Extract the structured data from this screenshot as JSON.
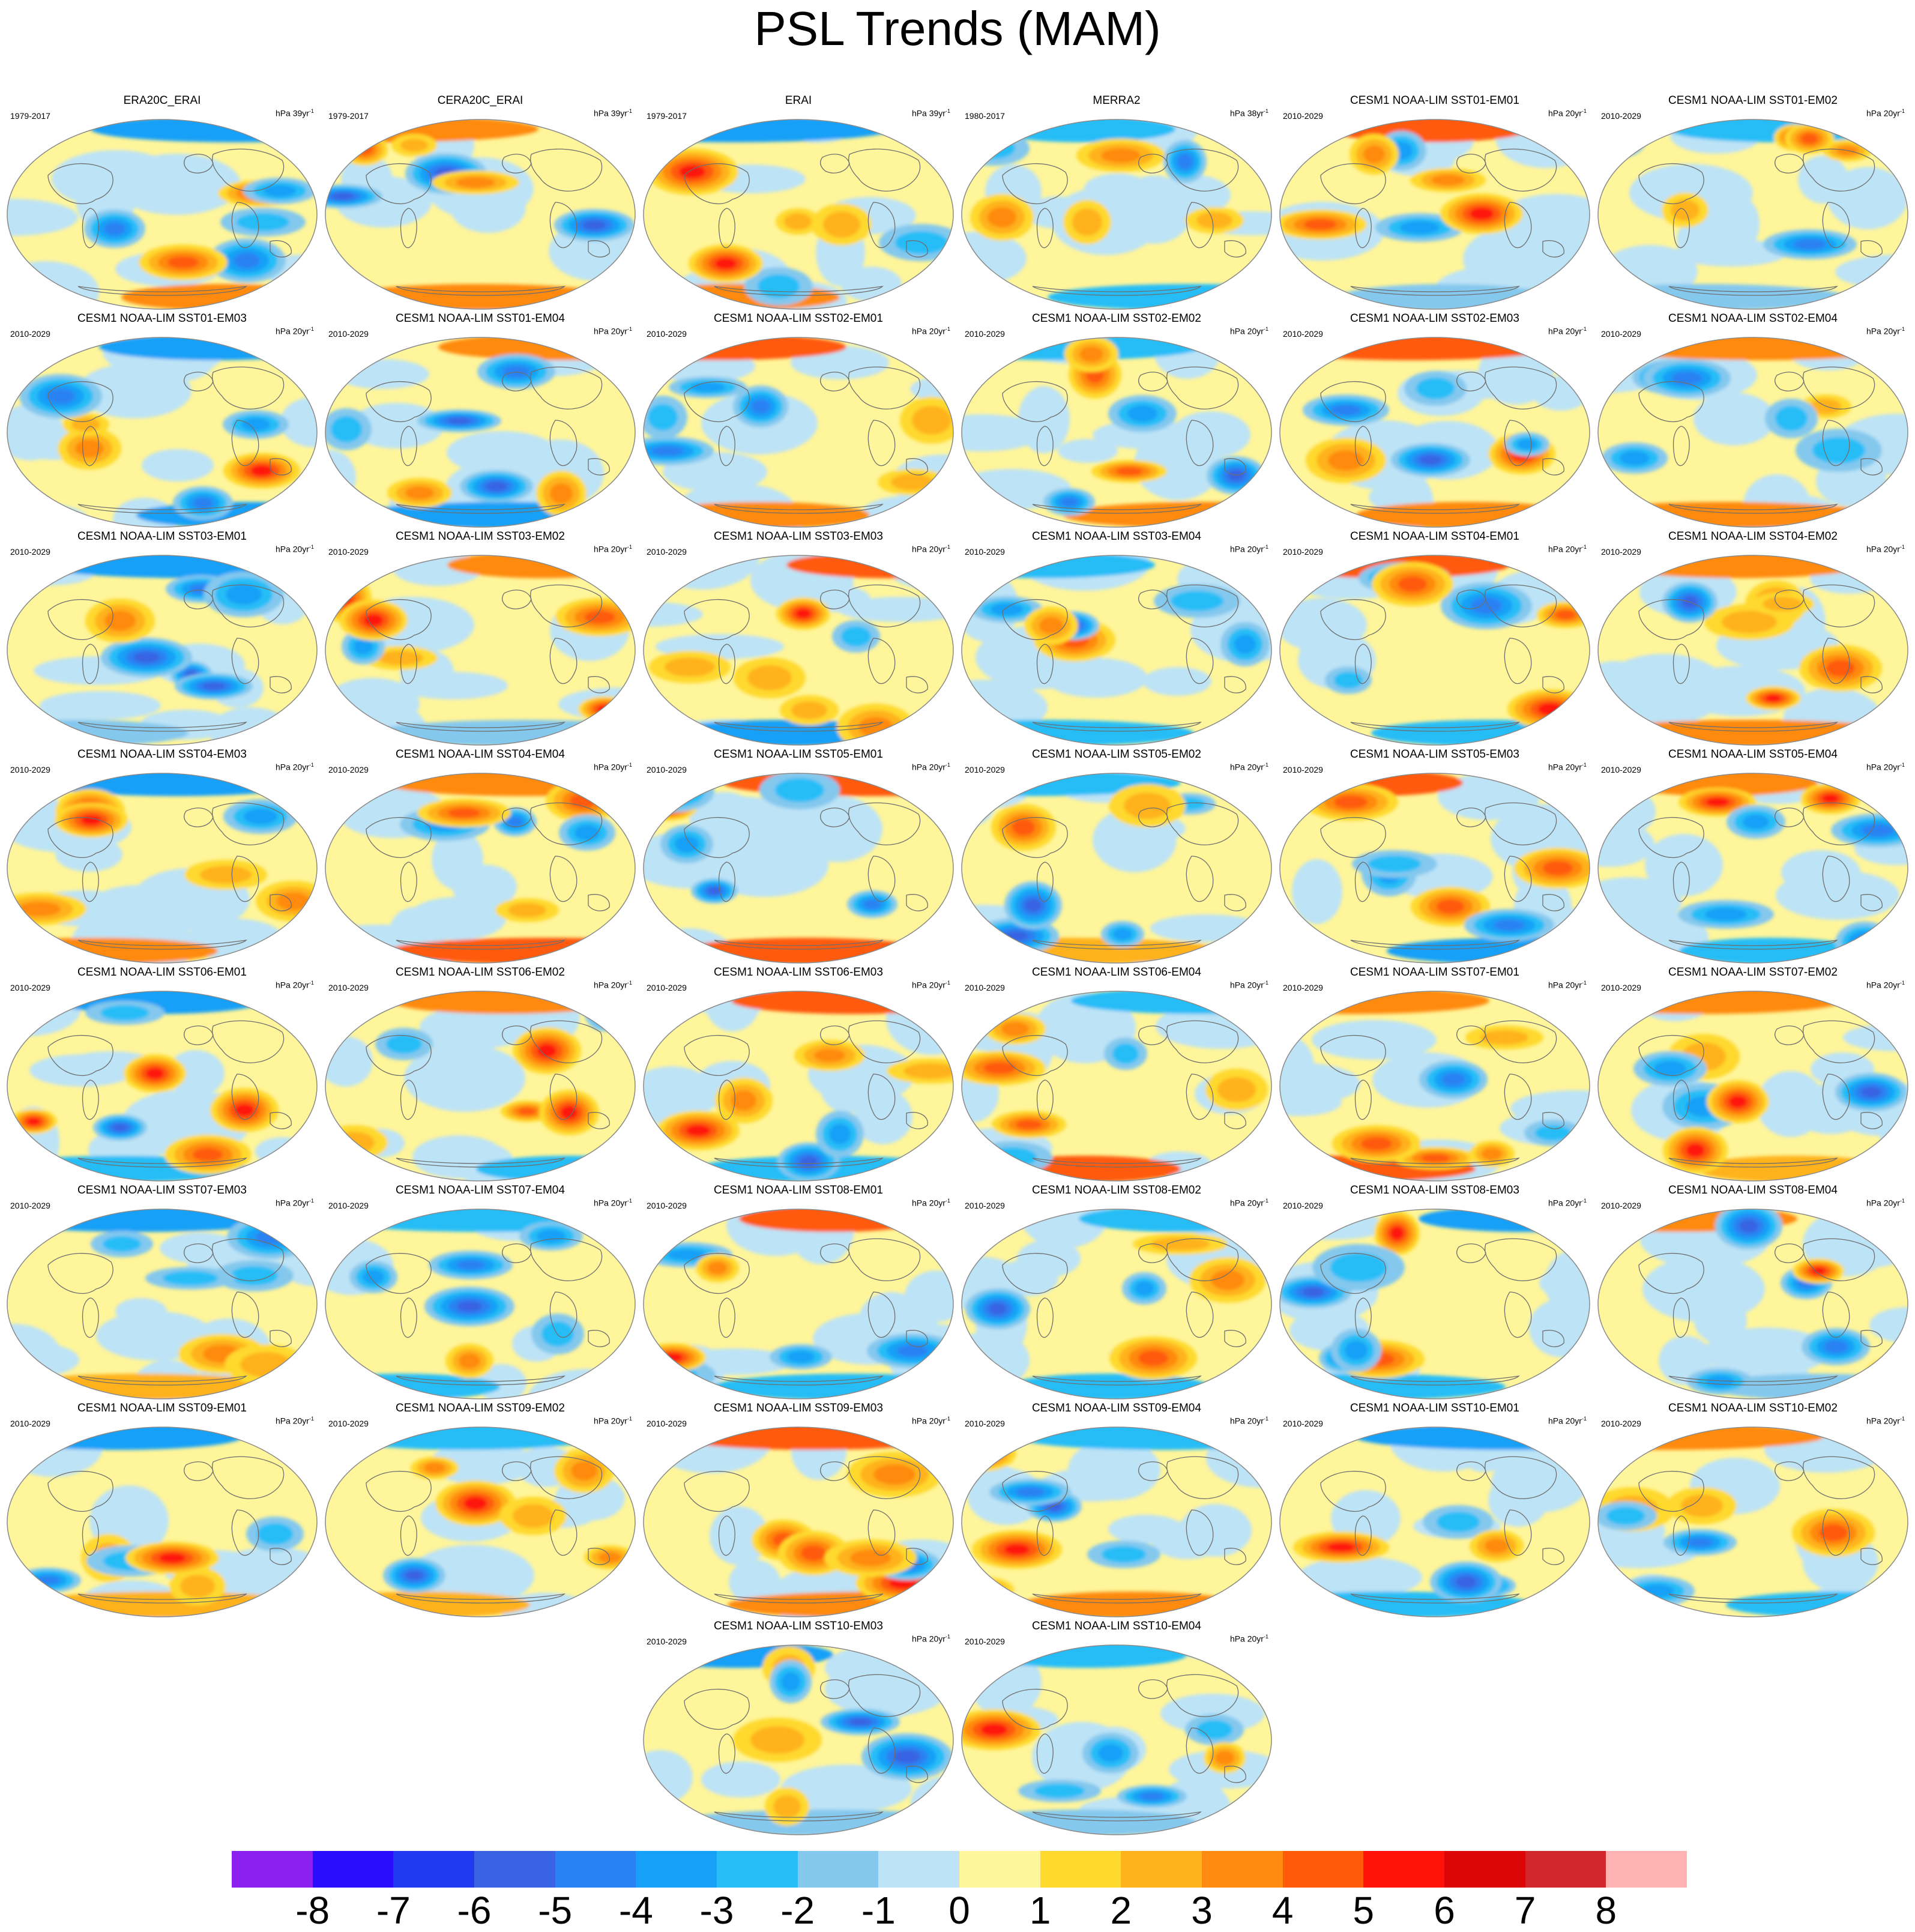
{
  "title": "PSL Trends (MAM)",
  "panels": [
    {
      "title": "ERA20C_ERAI",
      "period": "1979-2017",
      "units_prefix": "hPa 39yr",
      "units_exp": "-1"
    },
    {
      "title": "CERA20C_ERAI",
      "period": "1979-2017",
      "units_prefix": "hPa 39yr",
      "units_exp": "-1"
    },
    {
      "title": "ERAI",
      "period": "1979-2017",
      "units_prefix": "hPa 39yr",
      "units_exp": "-1"
    },
    {
      "title": "MERRA2",
      "period": "1980-2017",
      "units_prefix": "hPa 38yr",
      "units_exp": "-1"
    },
    {
      "title": "CESM1 NOAA-LIM SST01-EM01",
      "period": "2010-2029",
      "units_prefix": "hPa 20yr",
      "units_exp": "-1"
    },
    {
      "title": "CESM1 NOAA-LIM SST01-EM02",
      "period": "2010-2029",
      "units_prefix": "hPa 20yr",
      "units_exp": "-1"
    },
    {
      "title": "CESM1 NOAA-LIM SST01-EM03",
      "period": "2010-2029",
      "units_prefix": "hPa 20yr",
      "units_exp": "-1"
    },
    {
      "title": "CESM1 NOAA-LIM SST01-EM04",
      "period": "2010-2029",
      "units_prefix": "hPa 20yr",
      "units_exp": "-1"
    },
    {
      "title": "CESM1 NOAA-LIM SST02-EM01",
      "period": "2010-2029",
      "units_prefix": "hPa 20yr",
      "units_exp": "-1"
    },
    {
      "title": "CESM1 NOAA-LIM SST02-EM02",
      "period": "2010-2029",
      "units_prefix": "hPa 20yr",
      "units_exp": "-1"
    },
    {
      "title": "CESM1 NOAA-LIM SST02-EM03",
      "period": "2010-2029",
      "units_prefix": "hPa 20yr",
      "units_exp": "-1"
    },
    {
      "title": "CESM1 NOAA-LIM SST02-EM04",
      "period": "2010-2029",
      "units_prefix": "hPa 20yr",
      "units_exp": "-1"
    },
    {
      "title": "CESM1 NOAA-LIM SST03-EM01",
      "period": "2010-2029",
      "units_prefix": "hPa 20yr",
      "units_exp": "-1"
    },
    {
      "title": "CESM1 NOAA-LIM SST03-EM02",
      "period": "2010-2029",
      "units_prefix": "hPa 20yr",
      "units_exp": "-1"
    },
    {
      "title": "CESM1 NOAA-LIM SST03-EM03",
      "period": "2010-2029",
      "units_prefix": "hPa 20yr",
      "units_exp": "-1"
    },
    {
      "title": "CESM1 NOAA-LIM SST03-EM04",
      "period": "2010-2029",
      "units_prefix": "hPa 20yr",
      "units_exp": "-1"
    },
    {
      "title": "CESM1 NOAA-LIM SST04-EM01",
      "period": "2010-2029",
      "units_prefix": "hPa 20yr",
      "units_exp": "-1"
    },
    {
      "title": "CESM1 NOAA-LIM SST04-EM02",
      "period": "2010-2029",
      "units_prefix": "hPa 20yr",
      "units_exp": "-1"
    },
    {
      "title": "CESM1 NOAA-LIM SST04-EM03",
      "period": "2010-2029",
      "units_prefix": "hPa 20yr",
      "units_exp": "-1"
    },
    {
      "title": "CESM1 NOAA-LIM SST04-EM04",
      "period": "2010-2029",
      "units_prefix": "hPa 20yr",
      "units_exp": "-1"
    },
    {
      "title": "CESM1 NOAA-LIM SST05-EM01",
      "period": "2010-2029",
      "units_prefix": "hPa 20yr",
      "units_exp": "-1"
    },
    {
      "title": "CESM1 NOAA-LIM SST05-EM02",
      "period": "2010-2029",
      "units_prefix": "hPa 20yr",
      "units_exp": "-1"
    },
    {
      "title": "CESM1 NOAA-LIM SST05-EM03",
      "period": "2010-2029",
      "units_prefix": "hPa 20yr",
      "units_exp": "-1"
    },
    {
      "title": "CESM1 NOAA-LIM SST05-EM04",
      "period": "2010-2029",
      "units_prefix": "hPa 20yr",
      "units_exp": "-1"
    },
    {
      "title": "CESM1 NOAA-LIM SST06-EM01",
      "period": "2010-2029",
      "units_prefix": "hPa 20yr",
      "units_exp": "-1"
    },
    {
      "title": "CESM1 NOAA-LIM SST06-EM02",
      "period": "2010-2029",
      "units_prefix": "hPa 20yr",
      "units_exp": "-1"
    },
    {
      "title": "CESM1 NOAA-LIM SST06-EM03",
      "period": "2010-2029",
      "units_prefix": "hPa 20yr",
      "units_exp": "-1"
    },
    {
      "title": "CESM1 NOAA-LIM SST06-EM04",
      "period": "2010-2029",
      "units_prefix": "hPa 20yr",
      "units_exp": "-1"
    },
    {
      "title": "CESM1 NOAA-LIM SST07-EM01",
      "period": "2010-2029",
      "units_prefix": "hPa 20yr",
      "units_exp": "-1"
    },
    {
      "title": "CESM1 NOAA-LIM SST07-EM02",
      "period": "2010-2029",
      "units_prefix": "hPa 20yr",
      "units_exp": "-1"
    },
    {
      "title": "CESM1 NOAA-LIM SST07-EM03",
      "period": "2010-2029",
      "units_prefix": "hPa 20yr",
      "units_exp": "-1"
    },
    {
      "title": "CESM1 NOAA-LIM SST07-EM04",
      "period": "2010-2029",
      "units_prefix": "hPa 20yr",
      "units_exp": "-1"
    },
    {
      "title": "CESM1 NOAA-LIM SST08-EM01",
      "period": "2010-2029",
      "units_prefix": "hPa 20yr",
      "units_exp": "-1"
    },
    {
      "title": "CESM1 NOAA-LIM SST08-EM02",
      "period": "2010-2029",
      "units_prefix": "hPa 20yr",
      "units_exp": "-1"
    },
    {
      "title": "CESM1 NOAA-LIM SST08-EM03",
      "period": "2010-2029",
      "units_prefix": "hPa 20yr",
      "units_exp": "-1"
    },
    {
      "title": "CESM1 NOAA-LIM SST08-EM04",
      "period": "2010-2029",
      "units_prefix": "hPa 20yr",
      "units_exp": "-1"
    },
    {
      "title": "CESM1 NOAA-LIM SST09-EM01",
      "period": "2010-2029",
      "units_prefix": "hPa 20yr",
      "units_exp": "-1"
    },
    {
      "title": "CESM1 NOAA-LIM SST09-EM02",
      "period": "2010-2029",
      "units_prefix": "hPa 20yr",
      "units_exp": "-1"
    },
    {
      "title": "CESM1 NOAA-LIM SST09-EM03",
      "period": "2010-2029",
      "units_prefix": "hPa 20yr",
      "units_exp": "-1"
    },
    {
      "title": "CESM1 NOAA-LIM SST09-EM04",
      "period": "2010-2029",
      "units_prefix": "hPa 20yr",
      "units_exp": "-1"
    },
    {
      "title": "CESM1 NOAA-LIM SST10-EM01",
      "period": "2010-2029",
      "units_prefix": "hPa 20yr",
      "units_exp": "-1"
    },
    {
      "title": "CESM1 NOAA-LIM SST10-EM02",
      "period": "2010-2029",
      "units_prefix": "hPa 20yr",
      "units_exp": "-1"
    },
    {
      "title": "CESM1 NOAA-LIM SST10-EM03",
      "period": "2010-2029",
      "units_prefix": "hPa 20yr",
      "units_exp": "-1"
    },
    {
      "title": "CESM1 NOAA-LIM SST10-EM04",
      "period": "2010-2029",
      "units_prefix": "hPa 20yr",
      "units_exp": "-1"
    }
  ],
  "colorbar": {
    "labels": [
      "-8",
      "-7",
      "-6",
      "-5",
      "-4",
      "-3",
      "-2",
      "-1",
      "0",
      "1",
      "2",
      "3",
      "4",
      "5",
      "6",
      "7",
      "8"
    ],
    "colors": [
      "#8a1ff0",
      "#2a0cff",
      "#2139f0",
      "#3963e2",
      "#2a82f2",
      "#16a0f7",
      "#28bdf7",
      "#84c8ee",
      "#bde3f6",
      "#fff59a",
      "#ffd92e",
      "#ffb21c",
      "#ff8a10",
      "#ff5a0a",
      "#ff1208",
      "#dd0606",
      "#d0272d",
      "#ffb2b2"
    ]
  }
}
